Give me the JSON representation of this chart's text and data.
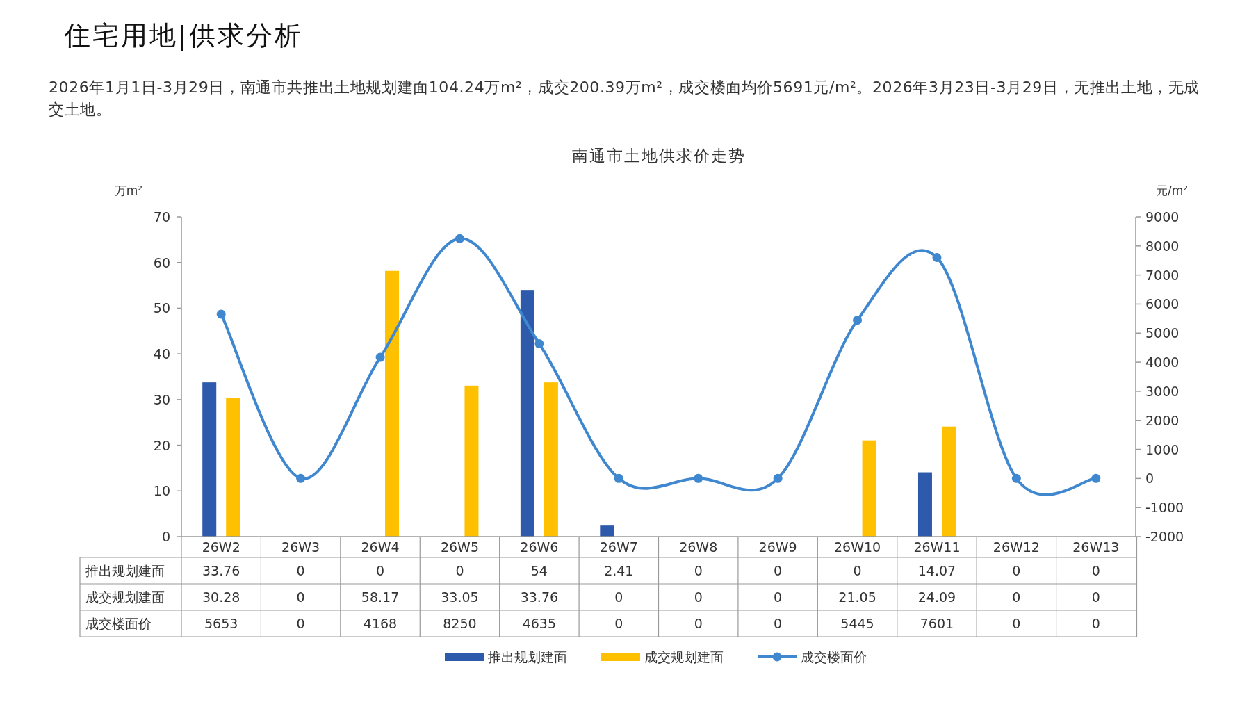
{
  "chart_data": {
    "type": "bar",
    "title": "南通市土地供求价走势",
    "annotations": [
      "住宅用地|供求分析",
      "2026年1月1日-3月29日，南通市共推出土地规划建面104.24万m²，成交200.39万m²，成交楼面均价5691元/m²。2026年3月23日-3月29日，无推出土地，无成交土地。"
    ],
    "ylabel": "万m²",
    "y2label": "元/m²",
    "categories": [
      "26W2",
      "26W3",
      "26W4",
      "26W5",
      "26W6",
      "26W7",
      "26W8",
      "26W9",
      "26W10",
      "26W11",
      "26W12",
      "26W13"
    ],
    "series": [
      {
        "name": "推出规划建面",
        "color": "#2e5aac",
        "values": [
          33.76,
          0,
          0,
          0,
          54,
          2.41,
          0,
          0,
          0,
          14.07,
          0,
          0
        ]
      },
      {
        "name": "成交规划建面",
        "color": "#ffc000",
        "values": [
          30.28,
          0,
          58.17,
          33.05,
          33.76,
          0,
          0,
          0,
          21.05,
          24.09,
          0,
          0
        ]
      },
      {
        "name": "成交楼面价",
        "type": "line",
        "axis": "y2",
        "color": "#3f87cf",
        "marker": "circle",
        "values": [
          5653,
          0,
          4168,
          8250,
          4635,
          0,
          0,
          0,
          5445,
          7601,
          0,
          0
        ]
      }
    ],
    "ylim": [
      0,
      70
    ],
    "yticks": [
      0,
      10,
      20,
      30,
      40,
      50,
      60,
      70
    ],
    "y2lim": [
      -2000,
      9000
    ],
    "y2ticks": [
      -2000,
      -1000,
      0,
      1000,
      2000,
      3000,
      4000,
      5000,
      6000,
      7000,
      8000,
      9000
    ],
    "grid": false,
    "legend": "bottom",
    "data_labels": true
  }
}
